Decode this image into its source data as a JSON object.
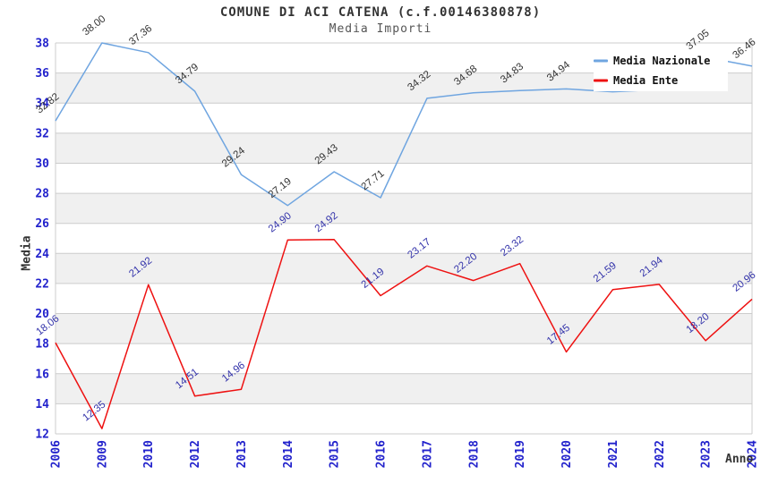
{
  "chart_data": {
    "type": "line",
    "title": "COMUNE DI ACI CATENA (c.f.00146380878)",
    "subtitle": "Media Importi",
    "xlabel": "Anno",
    "ylabel": "Media",
    "ylim": [
      12,
      38
    ],
    "ytick_step": 2,
    "grid": "horizontal, alternating shaded bands",
    "legend_position": "top-right overlay",
    "categories": [
      "2006",
      "2009",
      "2010",
      "2012",
      "2013",
      "2014",
      "2015",
      "2016",
      "2017",
      "2018",
      "2019",
      "2020",
      "2021",
      "2022",
      "2023",
      "2024"
    ],
    "series": [
      {
        "name": "Media Nazionale",
        "color": "#6fa5e0",
        "label_color": "#333333",
        "values": [
          32.82,
          38.0,
          37.36,
          34.79,
          29.24,
          27.19,
          29.43,
          27.71,
          34.32,
          34.68,
          34.83,
          34.94,
          34.75,
          34.9,
          37.05,
          36.46
        ],
        "labels": [
          "32.82",
          "38.00",
          "37.36",
          "34.79",
          "29.24",
          "27.19",
          "29.43",
          "27.71",
          "34.32",
          "34.68",
          "34.83",
          "34.94",
          null,
          null,
          "37.05",
          "36.46"
        ]
      },
      {
        "name": "Media Ente",
        "color": "#ee1111",
        "label_color": "#3333aa",
        "values": [
          18.06,
          12.35,
          21.92,
          14.51,
          14.96,
          24.9,
          24.92,
          21.19,
          23.17,
          22.2,
          23.32,
          17.45,
          21.59,
          21.94,
          18.2,
          20.96
        ],
        "labels": [
          "18.06",
          "12.35",
          "21.92",
          "14.51",
          "14.96",
          "24.90",
          "24.92",
          "21.19",
          "23.17",
          "22.20",
          "23.32",
          "17.45",
          "21.59",
          "21.94",
          "18.20",
          "20.96"
        ]
      }
    ],
    "colors": {
      "grid": "#cccccc",
      "band": "#f0f0f0",
      "tick": "#2222cc",
      "axis_label": "#333333"
    }
  }
}
